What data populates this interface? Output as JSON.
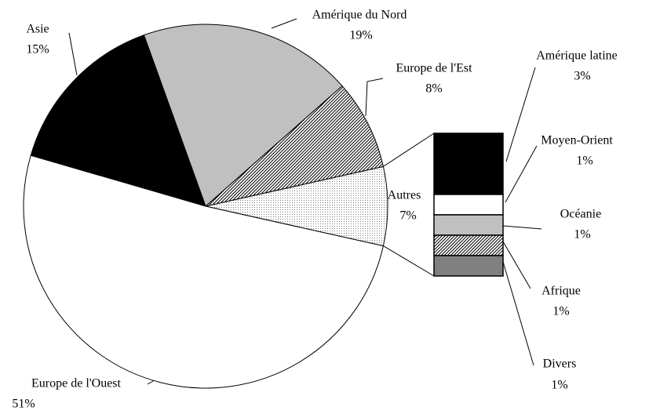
{
  "chart_data": {
    "type": "pie",
    "categories": [
      "Autres",
      "Europe de l'Est",
      "Amérique du Nord",
      "Asie",
      "Europe de l'Ouest"
    ],
    "values": [
      7,
      8,
      19,
      15,
      51
    ],
    "value_labels": [
      "7%",
      "8%",
      "19%",
      "15%",
      "51%"
    ],
    "fills": [
      "dots",
      "hatch",
      "#c0c0c0",
      "#000000",
      "#ffffff"
    ],
    "bar": {
      "categories": [
        "Amérique latine",
        "Moyen-Orient",
        "Océanie",
        "Afrique",
        "Divers"
      ],
      "values": [
        3,
        1,
        1,
        1,
        1
      ],
      "value_labels": [
        "3%",
        "1%",
        "1%",
        "1%",
        "1%"
      ],
      "fills": [
        "#000000",
        "#ffffff",
        "#c0c0c0",
        "hatch",
        "#808080"
      ]
    }
  }
}
